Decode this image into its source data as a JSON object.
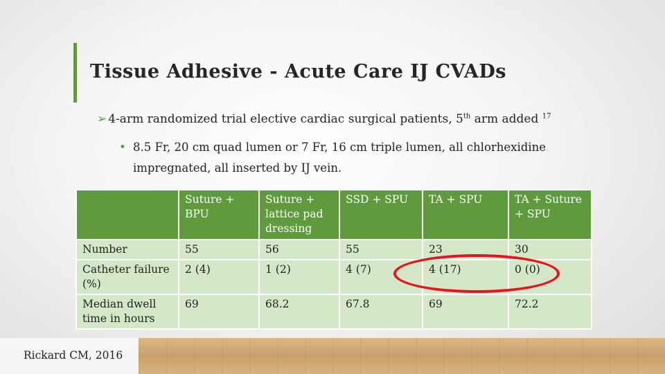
{
  "slide": {
    "title": "Tissue Adhesive - Acute Care IJ CVADs",
    "bullet1": {
      "text": "4-arm randomized trial elective cardiac surgical patients, 5",
      "sup1": "th",
      "tail": " arm added ",
      "sup2": "17"
    },
    "bullet2": "8.5 Fr, 20 cm quad lumen or 7 Fr, 16 cm triple lumen, all chlorhexidine impregnated, all inserted by IJ vein.",
    "citation": "Rickard CM, 2016"
  },
  "table": {
    "headers": [
      "",
      "Suture + BPU",
      "Suture + lattice pad dressing",
      "SSD + SPU",
      "TA + SPU",
      "TA + Suture + SPU"
    ],
    "rows": [
      [
        "Number",
        "55",
        "56",
        "55",
        "23",
        "30"
      ],
      [
        "Catheter failure (%)",
        "2 (4)",
        "1 (2)",
        "4  (7)",
        "4  (17)",
        "0  (0)"
      ],
      [
        "Median dwell time in hours",
        "69",
        "68.2",
        "67.8",
        "69",
        "72.2"
      ]
    ]
  },
  "colors": {
    "accent": "#5f9a3c",
    "table_body": "#d4e8c8",
    "highlight": "#e8141c"
  }
}
